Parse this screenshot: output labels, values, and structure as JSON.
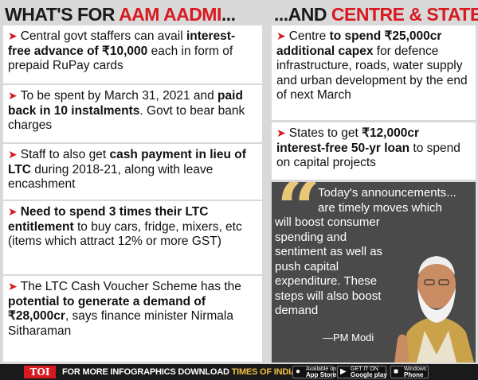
{
  "left": {
    "heading_dark": "WHAT'S FOR ",
    "heading_red": "AAM AADMI",
    "heading_tail": "...",
    "cards": [
      {
        "t1": "Central govt staffers can avail ",
        "b1": "interest-free advance of ₹10,000",
        "t2": " each in form of prepaid RuPay cards"
      },
      {
        "t1": "To be spent by March 31, 2021 and ",
        "b1": "paid back in 10 instalments",
        "t2": ". Govt to bear bank charges"
      },
      {
        "t1": "Staff to also get ",
        "b1": "cash payment in lieu of LTC",
        "t2": " during 2018-21, along with leave encashment"
      },
      {
        "t1": "",
        "b1": "Need to spend 3 times their LTC entitlement",
        "t2": " to buy cars, fridge, mixers, etc (items which attract 12% or more GST)"
      },
      {
        "t1": "The LTC Cash Voucher Scheme has the ",
        "b1": "potential to generate a demand of ₹28,000cr",
        "t2": ", says finance minister Nirmala Sitharaman"
      }
    ]
  },
  "right": {
    "heading_dark": "...AND ",
    "heading_red": "CENTRE & STATES",
    "cards": [
      {
        "t1": "Centre ",
        "b1": "to spend ₹25,000cr additional capex",
        "t2": " for defence infrastructure, roads, water supply and urban development by the end of next March"
      },
      {
        "t1": "States to get ",
        "b1": "₹12,000cr interest-free 50-yr loan",
        "t2": " to spend on capital projects"
      }
    ],
    "quote": {
      "line1": "Today's announcements...",
      "line2": "are timely moves which",
      "rest": "will boost consumer spending and sentiment as well as push capital expenditure. These steps will also boost demand",
      "attribution": "—PM Modi"
    }
  },
  "footer": {
    "logo": "TOI",
    "text": "FOR MORE INFOGRAPHICS DOWNLOAD ",
    "highlight": "TIMES OF INDIA APP",
    "appstore_small": "Available on the",
    "appstore_big": "App Store",
    "googleplay_small": "GET IT ON",
    "googleplay_big": "Google play",
    "windows_small": "Windows",
    "windows_big": "Phone"
  },
  "colors": {
    "accent_red": "#d71920",
    "quote_gold": "#e8c876",
    "quote_bg": "#4a4a4a"
  }
}
